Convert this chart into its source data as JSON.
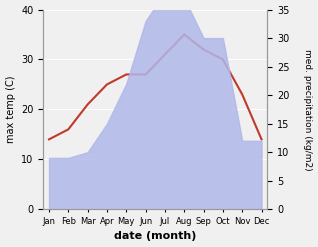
{
  "months": [
    "Jan",
    "Feb",
    "Mar",
    "Apr",
    "May",
    "Jun",
    "Jul",
    "Aug",
    "Sep",
    "Oct",
    "Nov",
    "Dec"
  ],
  "temperature": [
    14,
    16,
    21,
    25,
    27,
    27,
    31,
    35,
    32,
    30,
    23,
    14
  ],
  "precipitation": [
    9,
    9,
    10,
    15,
    22,
    33,
    38,
    37,
    30,
    30,
    12,
    12
  ],
  "temp_color": "#c0392b",
  "precip_fill_color": "#b0b8e8",
  "temp_ylim": [
    0,
    40
  ],
  "precip_ylim": [
    0,
    35
  ],
  "xlabel": "date (month)",
  "ylabel_left": "max temp (C)",
  "ylabel_right": "med. precipitation (kg/m2)",
  "bg_color": "#f0f0f0",
  "grid_color": "#ffffff",
  "temp_yticks": [
    0,
    10,
    20,
    30,
    40
  ],
  "precip_yticks": [
    0,
    5,
    10,
    15,
    20,
    25,
    30,
    35
  ]
}
